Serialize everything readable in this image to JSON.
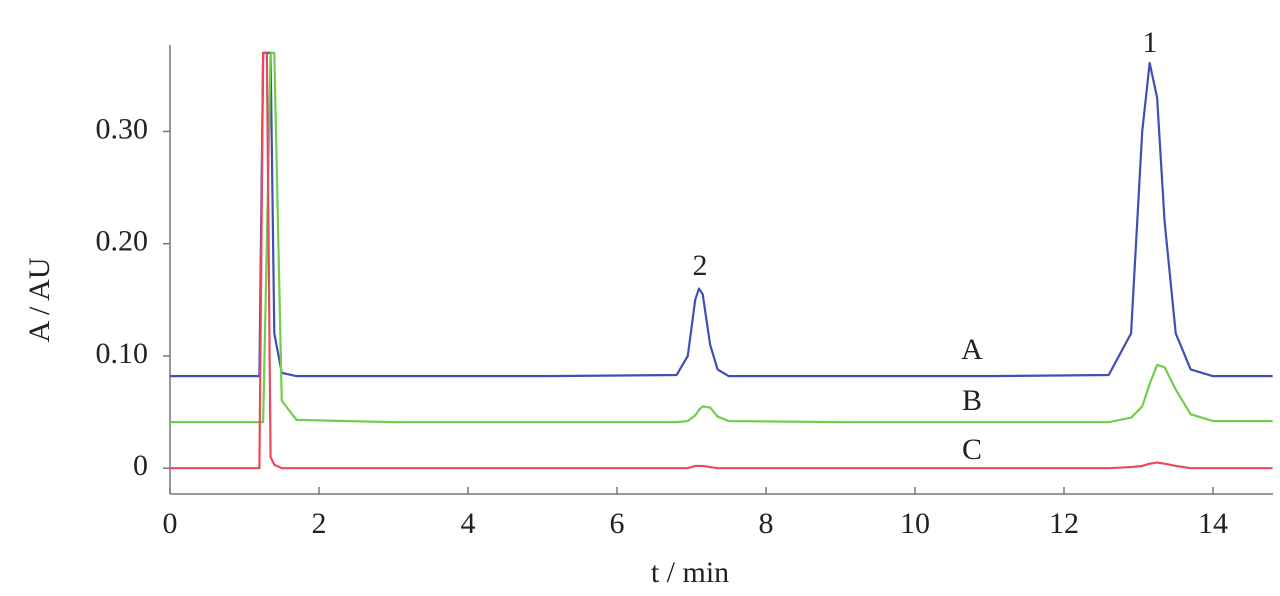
{
  "chart_data": {
    "type": "line",
    "x_label": "t / min",
    "y_label": "A / AU",
    "x": [
      0,
      1.2,
      1.25,
      1.3,
      1.35,
      1.4,
      1.5,
      1.7,
      3,
      5,
      6.8,
      6.95,
      7.05,
      7.1,
      7.15,
      7.25,
      7.35,
      7.5,
      9,
      11,
      12.6,
      12.9,
      13.05,
      13.15,
      13.25,
      13.35,
      13.5,
      13.7,
      14,
      14.8
    ],
    "series": [
      {
        "name": "A",
        "color": "#3f4fb3",
        "values": [
          0.082,
          0.082,
          0.37,
          0.37,
          0.37,
          0.12,
          0.085,
          0.082,
          0.082,
          0.082,
          0.083,
          0.1,
          0.15,
          0.16,
          0.155,
          0.11,
          0.088,
          0.082,
          0.082,
          0.082,
          0.083,
          0.12,
          0.3,
          0.361,
          0.33,
          0.22,
          0.12,
          0.088,
          0.082,
          0.082
        ]
      },
      {
        "name": "B",
        "color": "#6fcf4c",
        "values": [
          0.041,
          0.041,
          0.041,
          0.2,
          0.37,
          0.37,
          0.06,
          0.043,
          0.041,
          0.041,
          0.041,
          0.042,
          0.047,
          0.052,
          0.055,
          0.054,
          0.046,
          0.042,
          0.041,
          0.041,
          0.041,
          0.045,
          0.055,
          0.075,
          0.092,
          0.09,
          0.07,
          0.048,
          0.042,
          0.042
        ]
      },
      {
        "name": "C",
        "color": "#e84a5c",
        "values": [
          0,
          0,
          0.37,
          0.37,
          0.01,
          0.003,
          0,
          0,
          0,
          0,
          0,
          0,
          0.002,
          0.002,
          0.002,
          0.001,
          0,
          0,
          0,
          0,
          0,
          0.001,
          0.002,
          0.004,
          0.005,
          0.004,
          0.002,
          0,
          0,
          0
        ]
      }
    ],
    "annotations": [
      "1",
      "2"
    ],
    "xlim": [
      0,
      14.8
    ],
    "xticks": [
      0,
      2,
      4,
      6,
      8,
      10,
      12,
      14
    ],
    "ylim": [
      -0.023,
      0.377
    ],
    "yticks": [
      0,
      {
        "value": 0.1,
        "label": "0.10"
      },
      {
        "value": 0.2,
        "label": "0.20"
      },
      {
        "value": 0.3,
        "label": "0.30"
      }
    ],
    "grid": false
  }
}
